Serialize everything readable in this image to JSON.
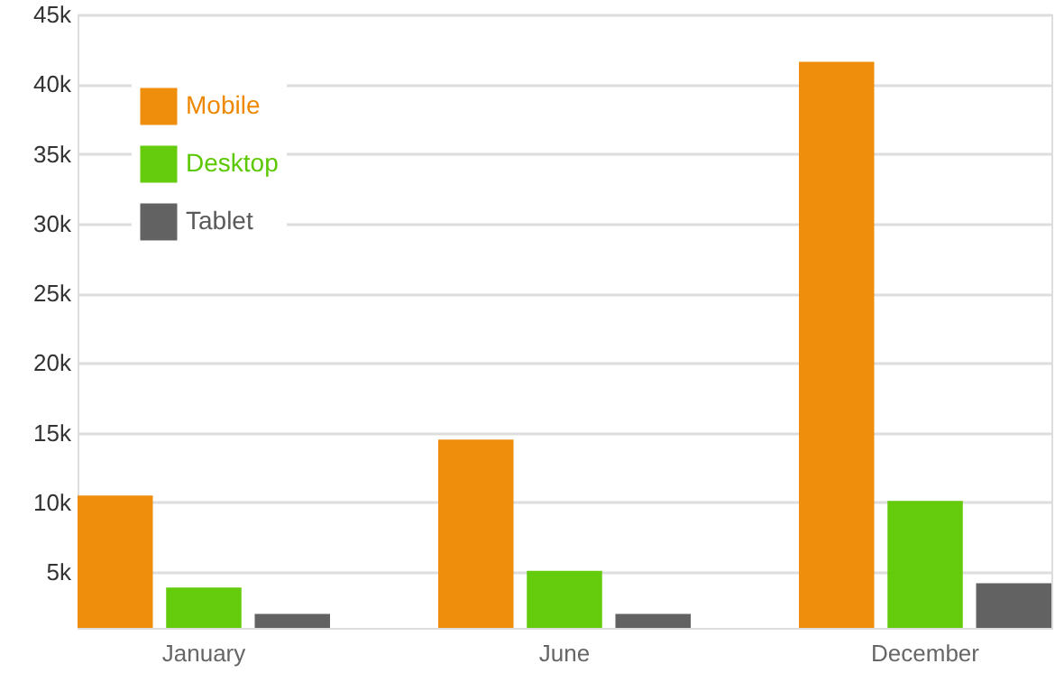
{
  "chart_data": {
    "type": "bar",
    "categories": [
      "January",
      "June",
      "December"
    ],
    "series": [
      {
        "name": "Mobile",
        "color": "#ee8800",
        "values": [
          10500,
          14500,
          41600
        ]
      },
      {
        "name": "Desktop",
        "color": "#5cc800",
        "values": [
          3900,
          5100,
          10100
        ]
      },
      {
        "name": "Tablet",
        "color": "#5a5a5a",
        "values": [
          2000,
          2000,
          4200
        ]
      }
    ],
    "ylim": [
      1000,
      45000
    ],
    "yticks": [
      {
        "value": 5000,
        "label": "5k"
      },
      {
        "value": 10000,
        "label": "10k"
      },
      {
        "value": 15000,
        "label": "15k"
      },
      {
        "value": 20000,
        "label": "20k"
      },
      {
        "value": 25000,
        "label": "25k"
      },
      {
        "value": 30000,
        "label": "30k"
      },
      {
        "value": 35000,
        "label": "35k"
      },
      {
        "value": 40000,
        "label": "40k"
      },
      {
        "value": 45000,
        "label": "45k"
      }
    ],
    "grid": "y",
    "legend": "top left"
  }
}
